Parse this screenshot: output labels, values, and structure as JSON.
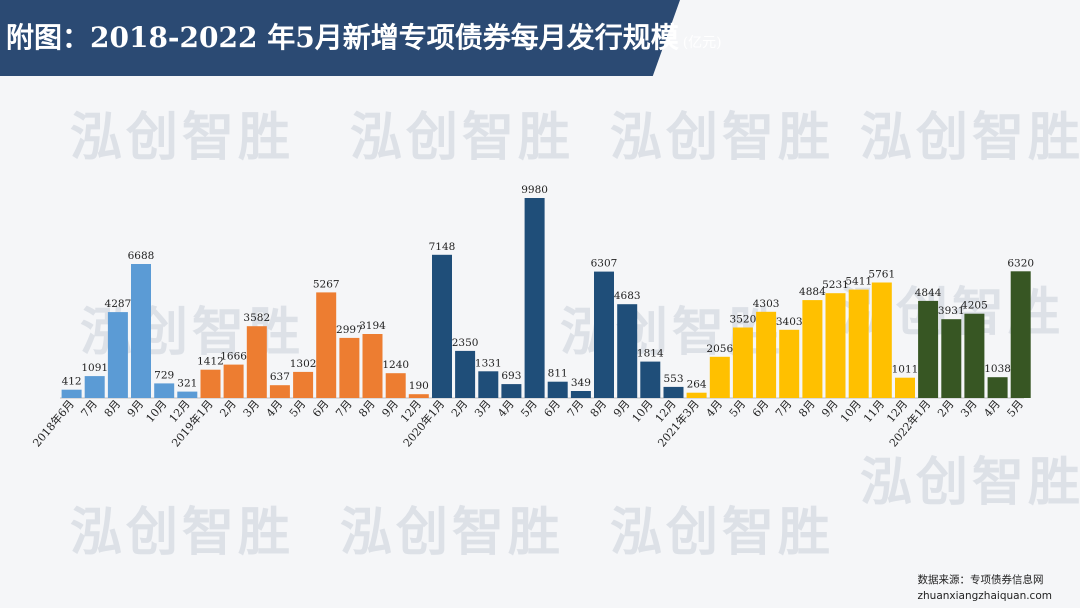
{
  "header": {
    "title": "附图：2018-2022 年5月新增专项债券每月发行规模",
    "unit": "(亿元)"
  },
  "watermark": {
    "text": "泓创智胜"
  },
  "footer": {
    "source": "数据来源：专项债券信息网",
    "site": "zhuanxiangzhaiquan.com"
  },
  "chart_data": {
    "type": "bar",
    "grid": false,
    "legend": "none",
    "categories": [
      "2018年6月",
      "7月",
      "8月",
      "9月",
      "10月",
      "12月",
      "2019年1月",
      "2月",
      "3月",
      "4月",
      "5月",
      "6月",
      "7月",
      "8月",
      "9月",
      "12月",
      "2020年1月",
      "2月",
      "3月",
      "4月",
      "5月",
      "6月",
      "7月",
      "8月",
      "9月",
      "10月",
      "12月",
      "2021年3月",
      "4月",
      "5月",
      "6月",
      "7月",
      "8月",
      "9月",
      "10月",
      "11月",
      "12月",
      "2022年1月",
      "2月",
      "3月",
      "4月",
      "5月"
    ],
    "values": [
      412,
      1091,
      4287,
      6688,
      729,
      321,
      1412,
      1666,
      3582,
      637,
      1302,
      5267,
      2997,
      3194,
      1240,
      190,
      7148,
      2350,
      1331,
      693,
      9980,
      811,
      349,
      6307,
      4683,
      1814,
      553,
      264,
      2056,
      3520,
      4303,
      3403,
      4884,
      5231,
      5411,
      5761,
      1011,
      4844,
      3931,
      4205,
      1038,
      6320
    ],
    "colors": [
      "#5b9bd5",
      "#5b9bd5",
      "#5b9bd5",
      "#5b9bd5",
      "#5b9bd5",
      "#5b9bd5",
      "#ed7d31",
      "#ed7d31",
      "#ed7d31",
      "#ed7d31",
      "#ed7d31",
      "#ed7d31",
      "#ed7d31",
      "#ed7d31",
      "#ed7d31",
      "#ed7d31",
      "#1f4e79",
      "#1f4e79",
      "#1f4e79",
      "#1f4e79",
      "#1f4e79",
      "#1f4e79",
      "#1f4e79",
      "#1f4e79",
      "#1f4e79",
      "#1f4e79",
      "#1f4e79",
      "#ffc000",
      "#ffc000",
      "#ffc000",
      "#ffc000",
      "#ffc000",
      "#ffc000",
      "#ffc000",
      "#ffc000",
      "#ffc000",
      "#ffc000",
      "#375623",
      "#375623",
      "#375623",
      "#375623",
      "#375623"
    ],
    "ylim": [
      0,
      9980
    ]
  }
}
